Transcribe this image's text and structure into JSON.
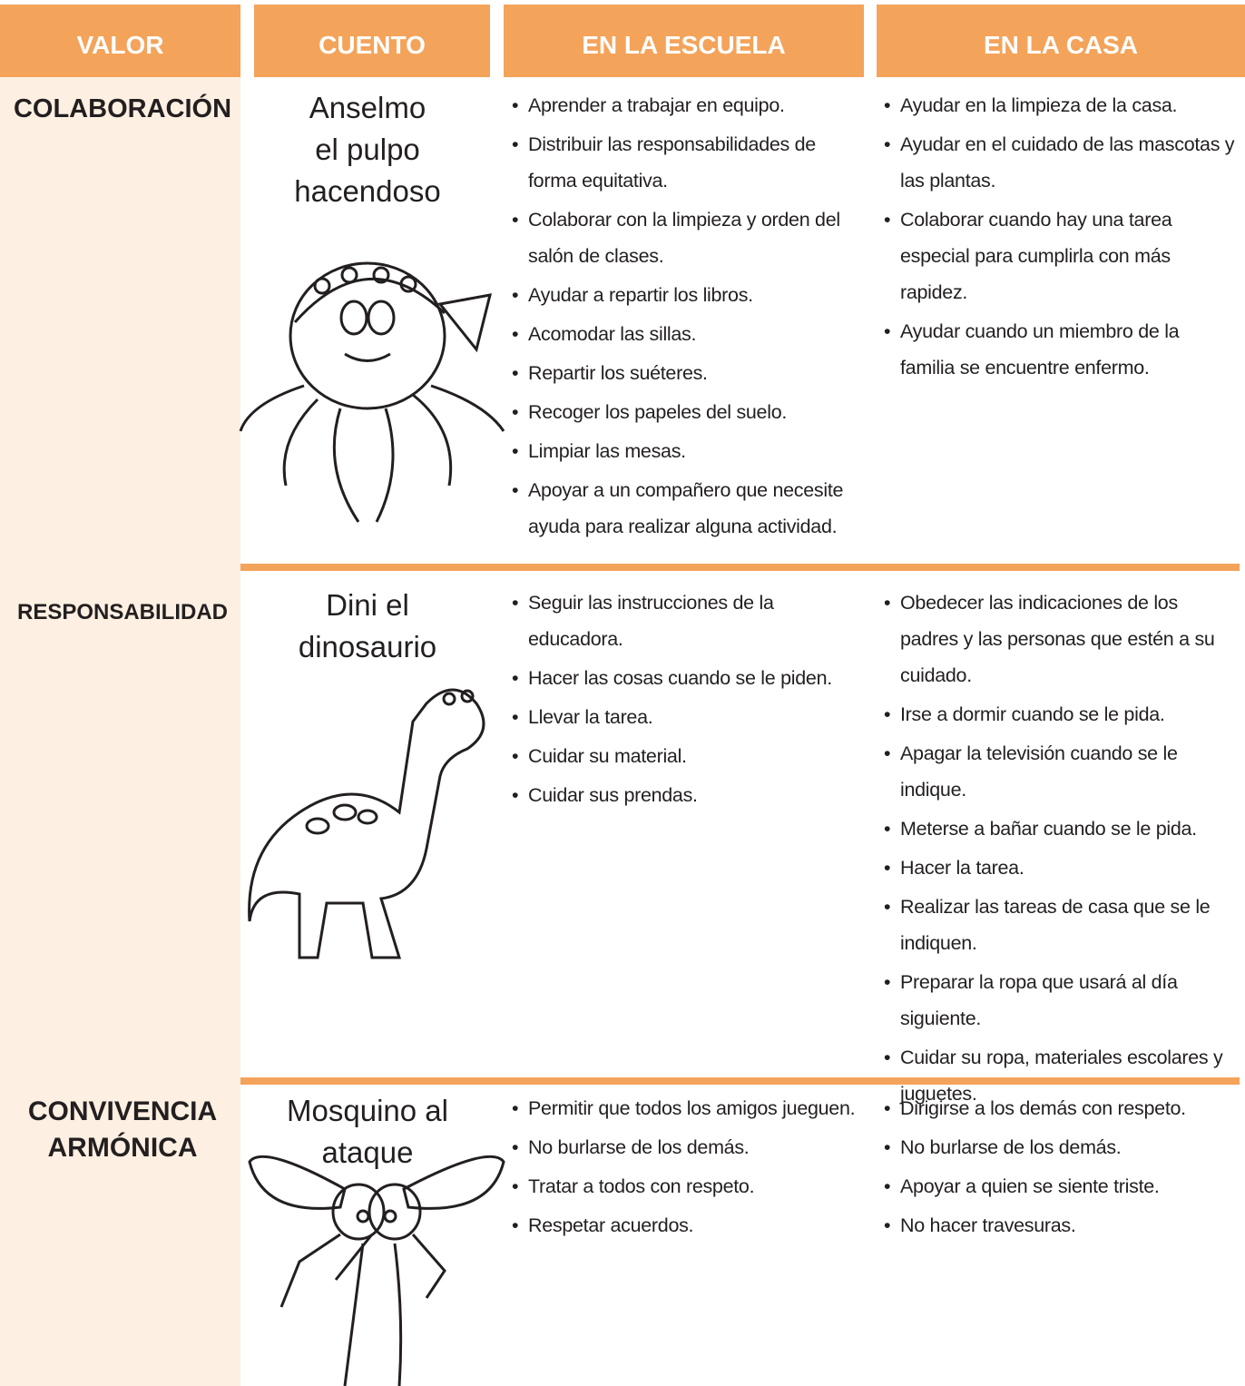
{
  "header": {
    "columns": [
      "VALOR",
      "CUENTO",
      "EN LA ESCUELA",
      "EN LA CASA"
    ]
  },
  "rows": [
    {
      "valor": [
        "COLABORACIÓN"
      ],
      "cuento": [
        "Anselmo",
        "el pulpo",
        "hacendoso"
      ],
      "escuela": [
        "Aprender a trabajar en equipo.",
        "Distribuir las responsabilidades de forma equitativa.",
        "Colaborar con la limpieza y orden del salón de clases.",
        "Ayudar a repartir los libros.",
        "Acomodar las sillas.",
        "Repartir los suéteres.",
        "Recoger los papeles del suelo.",
        "Limpiar las mesas.",
        "Apoyar a un compañero que necesite ayuda para realizar alguna actividad."
      ],
      "casa": [
        "Ayudar en la limpieza de la casa.",
        "Ayudar en el cuidado de las mascotas y las plantas.",
        "Colaborar cuando hay una tarea especial para cumplirla con más rapidez.",
        "Ayudar cuando un miembro de la familia se encuentre enfermo."
      ]
    },
    {
      "valor": [
        "RESPONSABILIDAD"
      ],
      "cuento": [
        "Dini el",
        "dinosaurio"
      ],
      "escuela": [
        "Seguir las instrucciones de la educadora.",
        "Hacer las cosas cuando se le piden.",
        "Llevar la tarea.",
        "Cuidar su material.",
        "Cuidar sus prendas."
      ],
      "casa": [
        "Obedecer las indicaciones de los padres y las personas que estén a su cuidado.",
        "Irse a dormir cuando se le pida.",
        "Apagar la televisión cuando se le indique.",
        "Meterse a bañar cuando se le pida.",
        "Hacer la tarea.",
        "Realizar las tareas de casa que se le indiquen.",
        "Preparar la ropa que usará al día siguiente.",
        "Cuidar su ropa, materiales escolares y juguetes."
      ]
    },
    {
      "valor": [
        "CONVIVENCIA",
        "ARMÓNICA"
      ],
      "cuento": [
        "Mosquino al",
        "ataque"
      ],
      "escuela": [
        "Permitir que todos los amigos jueguen.",
        "No burlarse de los demás.",
        "Tratar a todos con respeto.",
        "Respetar acuerdos."
      ],
      "casa": [
        "Dirigirse a los demás con respeto.",
        "No burlarse de los demás.",
        "Apoyar a quien se siente triste.",
        "No hacer travesuras."
      ]
    }
  ]
}
